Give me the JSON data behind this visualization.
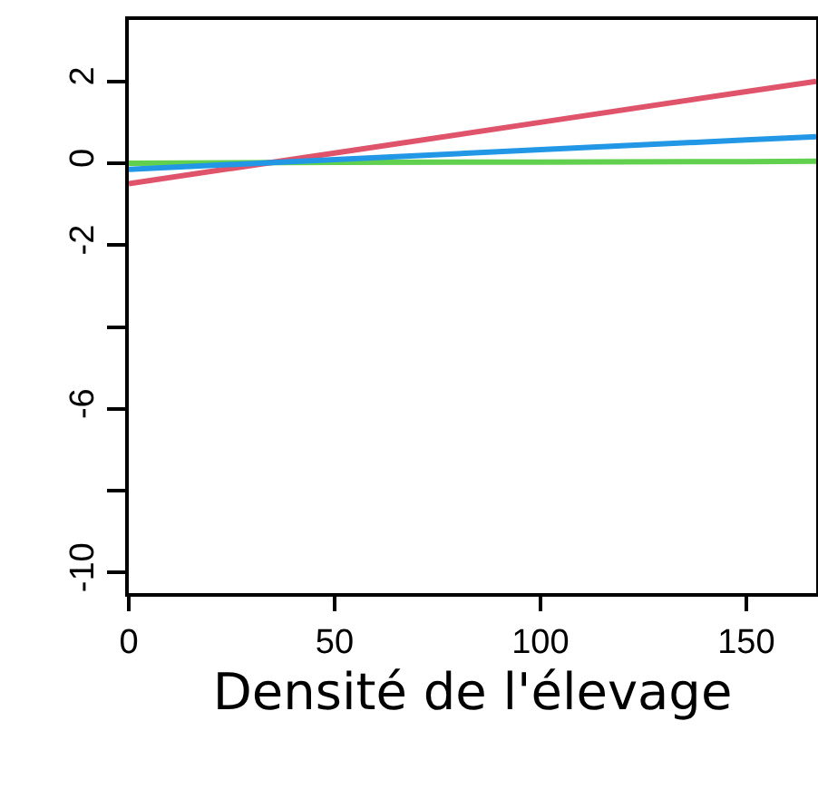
{
  "chart_data": {
    "type": "line",
    "xlabel": "Densité de l'élevage",
    "xlim": [
      0,
      167
    ],
    "xticks": [
      0,
      50,
      100,
      150
    ],
    "ylim": [
      -10.5,
      3.5
    ],
    "yticks": [
      2,
      0,
      -2,
      {
        "value": -4,
        "label": null
      },
      -6,
      {
        "value": -8,
        "label": null
      },
      -10
    ],
    "grid": false,
    "marker": "none",
    "line_style": "solid",
    "x": [
      0,
      50,
      100,
      150,
      167
    ],
    "series": [
      {
        "color": "#61d04f",
        "values": [
          0,
          0.02,
          0.03,
          0.04,
          0.05
        ]
      },
      {
        "color": "#df536b",
        "values": [
          -0.5,
          0.25,
          1,
          1.75,
          2
        ]
      },
      {
        "color": "#2297e6",
        "values": [
          -0.15,
          0.09,
          0.33,
          0.57,
          0.65
        ]
      }
    ]
  }
}
